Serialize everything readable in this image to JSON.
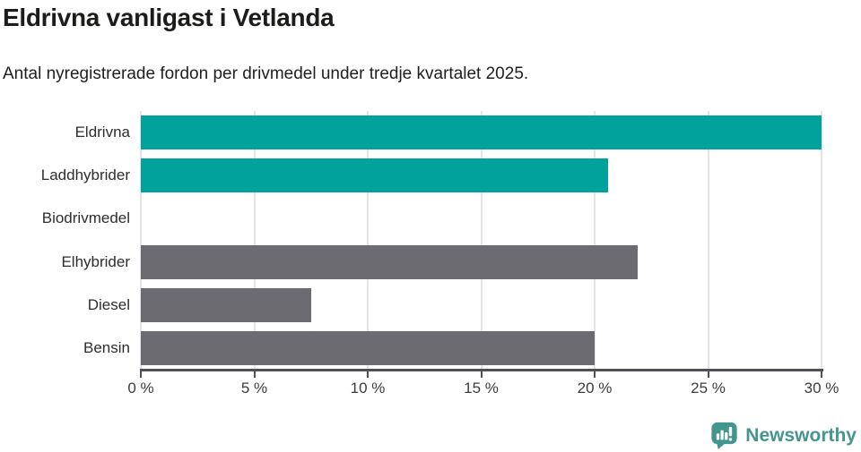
{
  "chart_data": {
    "type": "bar",
    "orientation": "horizontal",
    "title": "Eldrivna vanligast i Vetlanda",
    "subtitle": "Antal nyregistrerade fordon per drivmedel under tredje kvartalet 2025.",
    "categories": [
      "Eldrivna",
      "Laddhybrider",
      "Biodrivmedel",
      "Elhybrider",
      "Diesel",
      "Bensin"
    ],
    "values": [
      30,
      20.6,
      0,
      21.9,
      7.5,
      20
    ],
    "unit": "%",
    "xlabel": "",
    "ylabel": "",
    "xlim": [
      0,
      30
    ],
    "x_ticks": [
      0,
      5,
      10,
      15,
      20,
      25,
      30
    ],
    "x_tick_labels": [
      "0 %",
      "5 %",
      "10 %",
      "15 %",
      "20 %",
      "25 %",
      "30 %"
    ],
    "grid": "vertical-only",
    "legend": "none",
    "bar_colors": [
      "#00a29b",
      "#00a29b",
      "#00a29b",
      "#6b6b71",
      "#6b6b71",
      "#6b6b71"
    ]
  },
  "footer": {
    "brand": "Newsworthy"
  },
  "colors": {
    "accent_teal": "#00a29b",
    "muted_gray": "#6b6b71",
    "axis": "#4f4f55",
    "gridline": "#e4e4e4",
    "brand_teal": "#43968e"
  }
}
